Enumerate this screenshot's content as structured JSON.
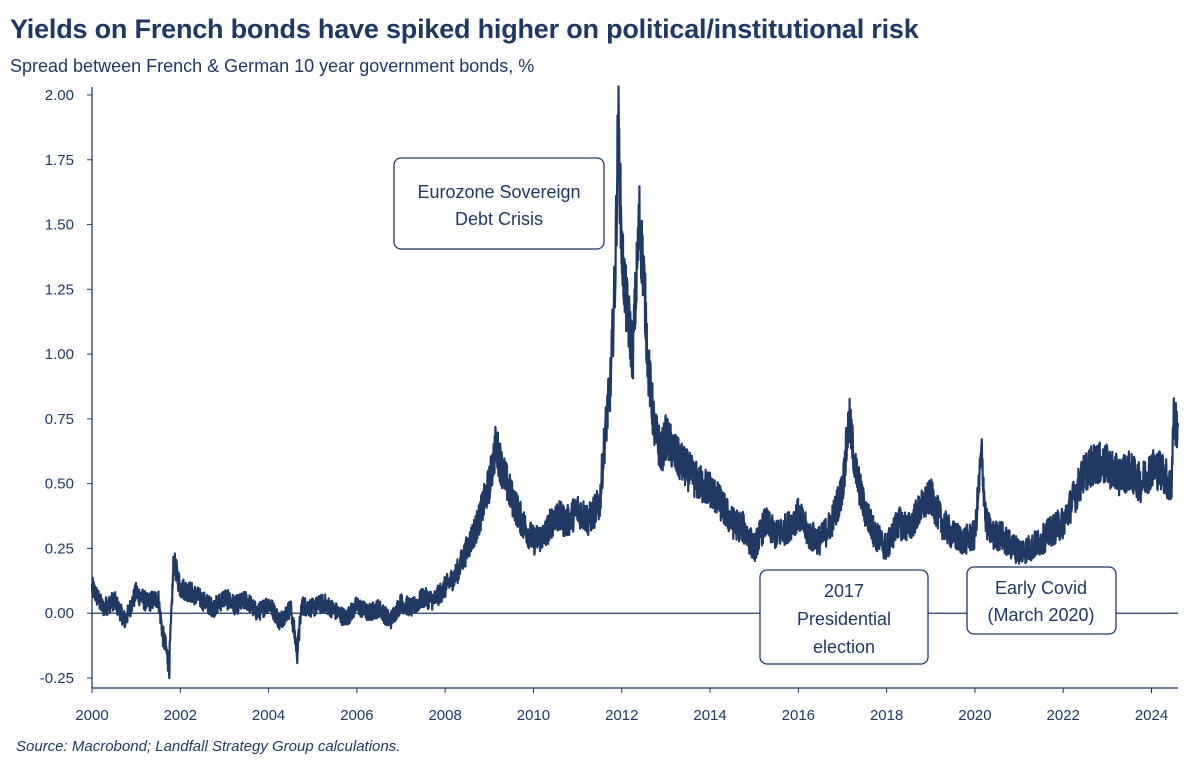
{
  "chart_data": {
    "type": "line",
    "title": "Yields on French bonds have spiked higher on political/institutional risk",
    "subtitle": "Spread between French & German 10 year government bonds, %",
    "source": "Source: Macrobond; Landfall Strategy Group calculations.",
    "xlabel": "",
    "ylabel": "",
    "xlim": [
      2000,
      2024.6
    ],
    "ylim": [
      -0.25,
      2.0
    ],
    "x_ticks": [
      "2000",
      "2002",
      "2004",
      "2006",
      "2008",
      "2010",
      "2012",
      "2014",
      "2016",
      "2018",
      "2020",
      "2022",
      "2024"
    ],
    "y_ticks": [
      "2.00",
      "1.75",
      "1.50",
      "1.25",
      "1.00",
      "0.75",
      "0.50",
      "0.25",
      "0.00",
      "-0.25"
    ],
    "y_tick_values": [
      2.0,
      1.75,
      1.5,
      1.25,
      1.0,
      0.75,
      0.5,
      0.25,
      0.0,
      -0.25
    ],
    "color": "#1f3864",
    "series": [
      {
        "name": "France-Germany 10Y spread",
        "x": [
          2000.0,
          2000.25,
          2000.5,
          2000.75,
          2001.0,
          2001.25,
          2001.5,
          2001.6,
          2001.75,
          2001.85,
          2002.0,
          2002.25,
          2002.5,
          2002.75,
          2003.0,
          2003.25,
          2003.5,
          2003.75,
          2004.0,
          2004.25,
          2004.5,
          2004.65,
          2004.75,
          2005.0,
          2005.25,
          2005.5,
          2005.75,
          2006.0,
          2006.25,
          2006.5,
          2006.75,
          2007.0,
          2007.25,
          2007.5,
          2007.75,
          2008.0,
          2008.25,
          2008.5,
          2008.75,
          2009.0,
          2009.15,
          2009.3,
          2009.5,
          2009.75,
          2010.0,
          2010.25,
          2010.5,
          2010.75,
          2011.0,
          2011.25,
          2011.5,
          2011.6,
          2011.75,
          2011.85,
          2011.92,
          2012.0,
          2012.1,
          2012.25,
          2012.4,
          2012.5,
          2012.6,
          2012.75,
          2012.9,
          2013.0,
          2013.25,
          2013.5,
          2013.75,
          2014.0,
          2014.25,
          2014.5,
          2014.75,
          2015.0,
          2015.25,
          2015.5,
          2015.75,
          2016.0,
          2016.25,
          2016.5,
          2016.75,
          2017.0,
          2017.15,
          2017.3,
          2017.5,
          2017.75,
          2018.0,
          2018.25,
          2018.5,
          2018.75,
          2019.0,
          2019.25,
          2019.5,
          2019.75,
          2020.0,
          2020.15,
          2020.25,
          2020.4,
          2020.6,
          2020.75,
          2021.0,
          2021.25,
          2021.5,
          2021.75,
          2022.0,
          2022.25,
          2022.5,
          2022.75,
          2023.0,
          2023.25,
          2023.5,
          2023.75,
          2024.0,
          2024.25,
          2024.4,
          2024.45,
          2024.5,
          2024.6
        ],
        "values": [
          0.1,
          0.02,
          0.05,
          -0.03,
          0.08,
          0.04,
          0.06,
          -0.08,
          -0.2,
          0.2,
          0.1,
          0.08,
          0.05,
          0.02,
          0.06,
          0.03,
          0.05,
          0.0,
          0.04,
          -0.03,
          0.02,
          -0.15,
          0.03,
          0.02,
          0.04,
          0.01,
          -0.02,
          0.03,
          0.0,
          0.02,
          -0.03,
          0.04,
          0.02,
          0.06,
          0.05,
          0.1,
          0.15,
          0.25,
          0.35,
          0.5,
          0.65,
          0.55,
          0.45,
          0.35,
          0.28,
          0.3,
          0.38,
          0.35,
          0.4,
          0.36,
          0.42,
          0.65,
          0.9,
          1.3,
          1.9,
          1.4,
          1.2,
          1.0,
          1.52,
          1.3,
          0.95,
          0.7,
          0.62,
          0.68,
          0.6,
          0.55,
          0.5,
          0.48,
          0.42,
          0.35,
          0.33,
          0.25,
          0.35,
          0.3,
          0.33,
          0.38,
          0.3,
          0.28,
          0.35,
          0.48,
          0.75,
          0.55,
          0.4,
          0.3,
          0.25,
          0.35,
          0.33,
          0.4,
          0.45,
          0.35,
          0.3,
          0.28,
          0.3,
          0.62,
          0.35,
          0.3,
          0.3,
          0.27,
          0.24,
          0.25,
          0.28,
          0.32,
          0.35,
          0.45,
          0.55,
          0.58,
          0.57,
          0.53,
          0.55,
          0.5,
          0.56,
          0.55,
          0.5,
          0.48,
          0.75,
          0.72
        ]
      }
    ],
    "annotations": [
      {
        "lines": [
          "Eurozone Sovereign",
          "Debt Crisis"
        ]
      },
      {
        "lines": [
          "2017",
          "Presidential",
          "election"
        ]
      },
      {
        "lines": [
          "Early Covid",
          "(March 2020)"
        ]
      }
    ]
  }
}
